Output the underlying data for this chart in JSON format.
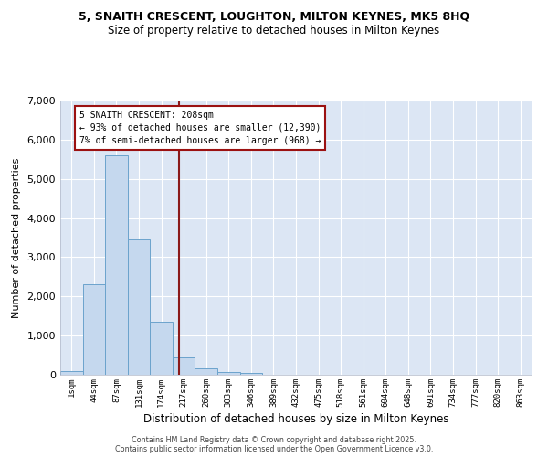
{
  "title1": "5, SNAITH CRESCENT, LOUGHTON, MILTON KEYNES, MK5 8HQ",
  "title2": "Size of property relative to detached houses in Milton Keynes",
  "xlabel": "Distribution of detached houses by size in Milton Keynes",
  "ylabel": "Number of detached properties",
  "categories": [
    "1sqm",
    "44sqm",
    "87sqm",
    "131sqm",
    "174sqm",
    "217sqm",
    "260sqm",
    "303sqm",
    "346sqm",
    "389sqm",
    "432sqm",
    "475sqm",
    "518sqm",
    "561sqm",
    "604sqm",
    "648sqm",
    "691sqm",
    "734sqm",
    "777sqm",
    "820sqm",
    "863sqm"
  ],
  "bar_values": [
    100,
    2300,
    5600,
    3450,
    1350,
    450,
    175,
    75,
    50,
    0,
    0,
    0,
    0,
    0,
    0,
    0,
    0,
    0,
    0,
    0,
    0
  ],
  "bar_color": "#c5d8ee",
  "bar_edge_color": "#6ba3cc",
  "vline_color": "#8b1a1a",
  "annotation_text": "5 SNAITH CRESCENT: 208sqm\n← 93% of detached houses are smaller (12,390)\n7% of semi-detached houses are larger (968) →",
  "annotation_box_color": "#9b1111",
  "ylim": [
    0,
    7000
  ],
  "yticks": [
    0,
    1000,
    2000,
    3000,
    4000,
    5000,
    6000,
    7000
  ],
  "bg_color": "#dce6f4",
  "grid_color": "#ffffff",
  "footer1": "Contains HM Land Registry data © Crown copyright and database right 2025.",
  "footer2": "Contains public sector information licensed under the Open Government Licence v3.0."
}
